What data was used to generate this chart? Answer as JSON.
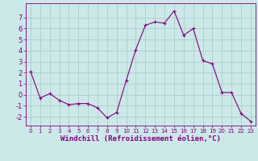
{
  "x": [
    0,
    1,
    2,
    3,
    4,
    5,
    6,
    7,
    8,
    9,
    10,
    11,
    12,
    13,
    14,
    15,
    16,
    17,
    18,
    19,
    20,
    21,
    22,
    23
  ],
  "y": [
    2.1,
    -0.3,
    0.1,
    -0.5,
    -0.9,
    -0.8,
    -0.8,
    -1.2,
    -2.1,
    -1.6,
    1.3,
    4.1,
    6.3,
    6.6,
    6.5,
    7.6,
    5.4,
    6.0,
    3.1,
    2.8,
    0.2,
    0.2,
    -1.7,
    -2.4
  ],
  "line_color": "#800080",
  "marker": "+",
  "marker_size": 3,
  "bg_color": "#cce8e8",
  "grid_color": "#aacece",
  "xlabel": "Windchill (Refroidissement éolien,°C)",
  "xlabel_fontsize": 6.5,
  "tick_fontsize_x": 5.0,
  "tick_fontsize_y": 6.0,
  "ylim": [
    -2.8,
    8.3
  ],
  "xlim": [
    -0.5,
    23.5
  ],
  "yticks": [
    -2,
    -1,
    0,
    1,
    2,
    3,
    4,
    5,
    6,
    7
  ],
  "xticks": [
    0,
    1,
    2,
    3,
    4,
    5,
    6,
    7,
    8,
    9,
    10,
    11,
    12,
    13,
    14,
    15,
    16,
    17,
    18,
    19,
    20,
    21,
    22,
    23
  ],
  "axis_color": "#800080",
  "linewidth": 0.8,
  "markeredgewidth": 0.8
}
